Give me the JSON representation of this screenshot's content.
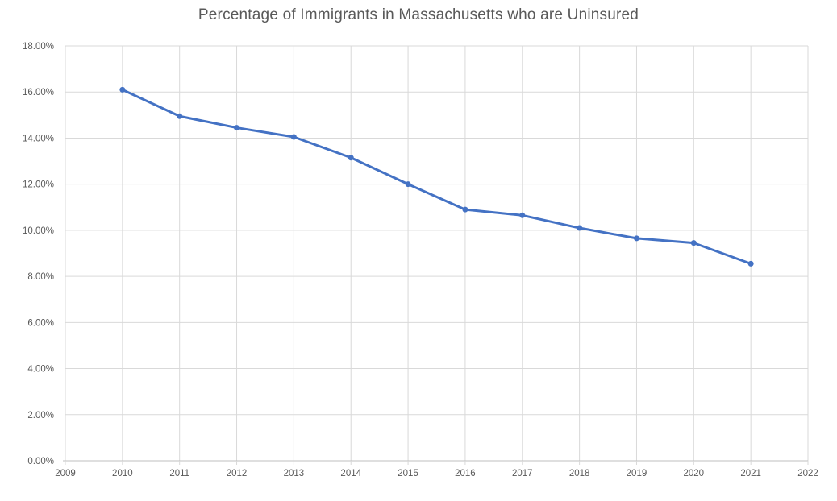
{
  "chart_data": {
    "type": "line",
    "title": "Percentage of Immigrants in Massachusetts who are Uninsured",
    "xlabel": "",
    "ylabel": "",
    "x": [
      2010,
      2011,
      2012,
      2013,
      2014,
      2015,
      2016,
      2017,
      2018,
      2019,
      2020,
      2021
    ],
    "values": [
      16.1,
      14.95,
      14.45,
      14.05,
      13.15,
      12.0,
      10.9,
      10.65,
      10.1,
      9.65,
      9.45,
      8.55
    ],
    "x_ticks": [
      2009,
      2010,
      2011,
      2012,
      2013,
      2014,
      2015,
      2016,
      2017,
      2018,
      2019,
      2020,
      2021,
      2022
    ],
    "y_ticks": [
      0,
      2,
      4,
      6,
      8,
      10,
      12,
      14,
      16,
      18
    ],
    "y_tick_labels": [
      "0.00%",
      "2.00%",
      "4.00%",
      "6.00%",
      "8.00%",
      "10.00%",
      "12.00%",
      "14.00%",
      "16.00%",
      "18.00%"
    ],
    "xlim": [
      2009,
      2022
    ],
    "ylim": [
      0,
      18
    ],
    "grid": true,
    "legend": false,
    "marker": "circle"
  },
  "colors": {
    "line": "#4472C4",
    "text": "#595959",
    "gridline": "#D9D9D9",
    "axis": "#BFBFBF",
    "background": "#FFFFFF"
  }
}
